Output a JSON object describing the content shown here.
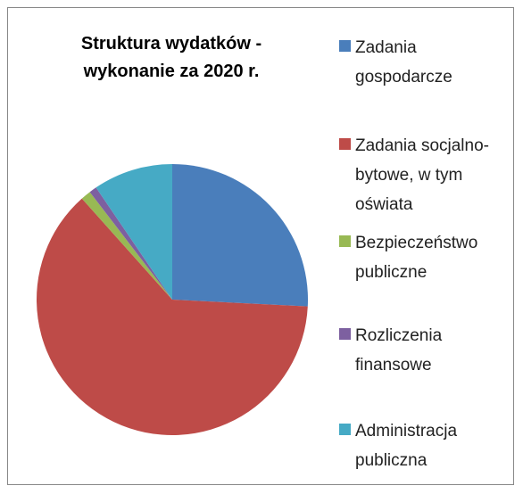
{
  "chart_data": {
    "type": "pie",
    "title": "Struktura wydatków - wykonanie za 2020 r.",
    "categories": [
      "Zadania gospodarcze",
      "Zadania socjalno-bytowe, w tym oświata",
      "Bezpieczeństwo publiczne",
      "Rozliczenia finansowe",
      "Administracja publiczna"
    ],
    "values": [
      25.8,
      62.6,
      1.2,
      0.9,
      9.5
    ],
    "colors": [
      "#4a7ebb",
      "#be4b48",
      "#98b954",
      "#7d60a0",
      "#46aac5"
    ],
    "legend": "right"
  }
}
